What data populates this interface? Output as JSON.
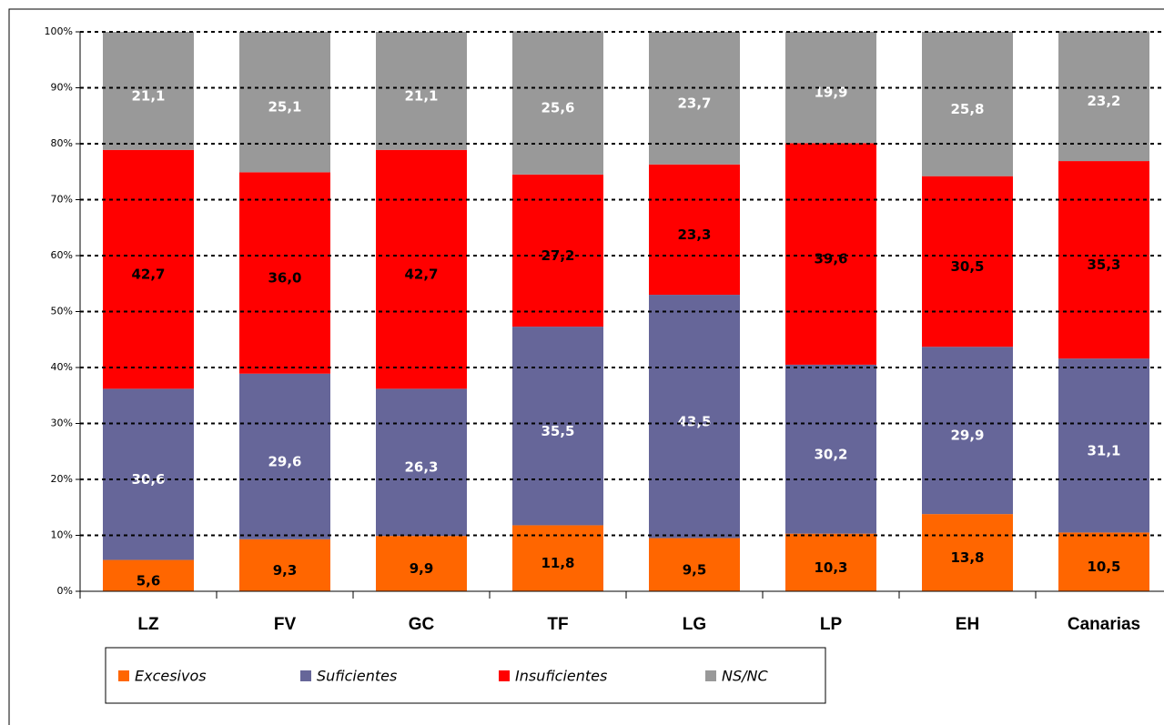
{
  "chart_data": {
    "type": "stacked-bar",
    "categories": [
      "LZ",
      "FV",
      "GC",
      "TF",
      "LG",
      "LP",
      "EH",
      "Canarias"
    ],
    "series": [
      {
        "name": "Excesivos",
        "color": "#ff6600",
        "values": [
          5.6,
          9.3,
          9.9,
          11.8,
          9.5,
          10.3,
          13.8,
          10.5
        ],
        "value_labels": [
          "5,6",
          "9,3",
          "9,9",
          "11,8",
          "9,5",
          "10,3",
          "13,8",
          "10,5"
        ]
      },
      {
        "name": "Suficientes",
        "color": "#666699",
        "values": [
          30.6,
          29.6,
          26.3,
          35.5,
          43.5,
          30.2,
          29.9,
          31.1
        ],
        "value_labels": [
          "30,6",
          "29,6",
          "26,3",
          "35,5",
          "43,5",
          "30,2",
          "29,9",
          "31,1"
        ]
      },
      {
        "name": "Insuficientes",
        "color": "#ff0000",
        "values": [
          42.7,
          36.0,
          42.7,
          27.2,
          23.3,
          39.6,
          30.5,
          35.3
        ],
        "value_labels": [
          "42,7",
          "36,0",
          "42,7",
          "27,2",
          "23,3",
          "39,6",
          "30,5",
          "35,3"
        ]
      },
      {
        "name": "NS/NC",
        "color": "#999999",
        "values": [
          21.1,
          25.1,
          21.1,
          25.6,
          23.7,
          19.9,
          25.8,
          23.2
        ],
        "value_labels": [
          "21,1",
          "25,1",
          "21,1",
          "25,6",
          "23,7",
          "19,9",
          "25,8",
          "23,2"
        ]
      }
    ],
    "ylim": [
      0,
      100
    ],
    "yticks": [
      {
        "value": 0,
        "label": "0%"
      },
      {
        "value": 10,
        "label": "10%"
      },
      {
        "value": 20,
        "label": "20%"
      },
      {
        "value": 30,
        "label": "30%"
      },
      {
        "value": 40,
        "label": "40%"
      },
      {
        "value": 50,
        "label": "50%"
      },
      {
        "value": 60,
        "label": "60%"
      },
      {
        "value": 70,
        "label": "70%"
      },
      {
        "value": 80,
        "label": "80%"
      },
      {
        "value": 90,
        "label": "90%"
      },
      {
        "value": 100,
        "label": "100%"
      }
    ],
    "grid": true,
    "legend": "bottom"
  }
}
